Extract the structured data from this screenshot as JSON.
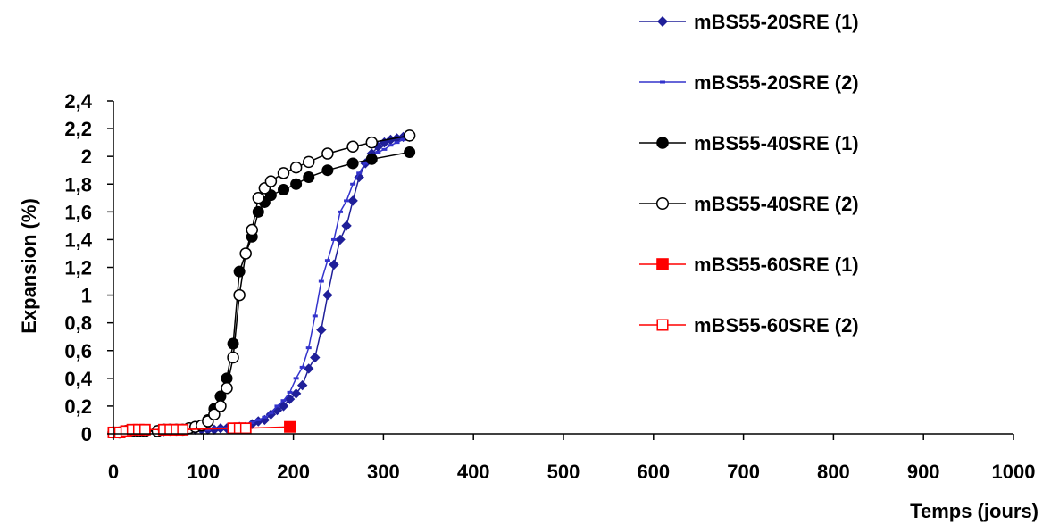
{
  "chart_data": {
    "type": "line",
    "xlabel": "Temps (jours)",
    "ylabel": "Expansion (%)",
    "xlim": [
      0,
      1000
    ],
    "ylim": [
      0,
      2.4
    ],
    "x_ticks": [
      "0",
      "100",
      "200",
      "300",
      "400",
      "500",
      "600",
      "700",
      "800",
      "900",
      "1000"
    ],
    "y_ticks": [
      "0",
      "0,2",
      "0,4",
      "0,6",
      "0,8",
      "1",
      "1,2",
      "1,4",
      "1,6",
      "1,8",
      "2",
      "2,2",
      "2,4"
    ],
    "grid": false,
    "legend_position": "right",
    "series": [
      {
        "name": "mBS55-20SRE (1)",
        "color": "#1f1f99",
        "marker": "diamond",
        "x": [
          0,
          7,
          14,
          21,
          28,
          35,
          49,
          56,
          63,
          70,
          77,
          84,
          91,
          98,
          105,
          112,
          119,
          126,
          133,
          140,
          147,
          154,
          161,
          168,
          175,
          182,
          189,
          196,
          203,
          210,
          217,
          224,
          231,
          238,
          245,
          252,
          259,
          266,
          273,
          280,
          287,
          294,
          301,
          308,
          315,
          322,
          329
        ],
        "y": [
          0.01,
          0.01,
          0.02,
          0.02,
          0.02,
          0.02,
          0.02,
          0.02,
          0.03,
          0.03,
          0.03,
          0.03,
          0.03,
          0.03,
          0.03,
          0.03,
          0.04,
          0.04,
          0.04,
          0.05,
          0.05,
          0.07,
          0.09,
          0.1,
          0.14,
          0.17,
          0.2,
          0.25,
          0.29,
          0.35,
          0.47,
          0.55,
          0.75,
          1.0,
          1.22,
          1.4,
          1.5,
          1.68,
          1.85,
          1.95,
          2.02,
          2.07,
          2.1,
          2.12,
          2.13,
          2.14,
          2.14
        ]
      },
      {
        "name": "mBS55-20SRE (2)",
        "color": "#3333cc",
        "marker": "dash",
        "x": [
          0,
          7,
          14,
          21,
          28,
          35,
          49,
          56,
          63,
          70,
          77,
          84,
          91,
          98,
          105,
          112,
          119,
          126,
          133,
          140,
          147,
          154,
          161,
          168,
          175,
          182,
          189,
          196,
          203,
          210,
          217,
          224,
          231,
          238,
          245,
          252,
          259,
          266,
          273,
          280,
          287,
          294,
          301,
          308,
          315,
          322,
          329
        ],
        "y": [
          0.01,
          0.01,
          0.02,
          0.02,
          0.02,
          0.02,
          0.02,
          0.02,
          0.03,
          0.03,
          0.03,
          0.03,
          0.03,
          0.03,
          0.03,
          0.04,
          0.04,
          0.04,
          0.05,
          0.05,
          0.06,
          0.08,
          0.1,
          0.12,
          0.15,
          0.2,
          0.24,
          0.3,
          0.4,
          0.48,
          0.62,
          0.85,
          1.1,
          1.25,
          1.4,
          1.6,
          1.68,
          1.8,
          1.88,
          1.95,
          2.0,
          2.03,
          2.05,
          2.08,
          2.1,
          2.12,
          2.13
        ]
      },
      {
        "name": "mBS55-40SRE (1)",
        "color": "#000000",
        "marker": "circle-filled",
        "x": [
          0,
          7,
          14,
          21,
          28,
          35,
          49,
          56,
          63,
          70,
          77,
          84,
          91,
          98,
          105,
          112,
          119,
          126,
          133,
          140,
          147,
          154,
          161,
          168,
          175,
          189,
          203,
          217,
          238,
          266,
          287,
          329
        ],
        "y": [
          0.01,
          0.01,
          0.02,
          0.02,
          0.02,
          0.02,
          0.02,
          0.03,
          0.03,
          0.03,
          0.03,
          0.04,
          0.05,
          0.06,
          0.1,
          0.18,
          0.27,
          0.4,
          0.65,
          1.17,
          1.3,
          1.42,
          1.6,
          1.67,
          1.72,
          1.76,
          1.8,
          1.85,
          1.9,
          1.95,
          1.98,
          2.03
        ]
      },
      {
        "name": "mBS55-40SRE (2)",
        "color": "#000000",
        "marker": "circle-open",
        "x": [
          0,
          7,
          14,
          21,
          28,
          35,
          49,
          56,
          63,
          70,
          77,
          84,
          91,
          98,
          105,
          112,
          119,
          126,
          133,
          140,
          147,
          154,
          161,
          168,
          175,
          189,
          203,
          217,
          238,
          266,
          287,
          329
        ],
        "y": [
          0.01,
          0.01,
          0.02,
          0.02,
          0.02,
          0.02,
          0.02,
          0.03,
          0.03,
          0.03,
          0.03,
          0.04,
          0.05,
          0.06,
          0.09,
          0.14,
          0.2,
          0.33,
          0.55,
          1.0,
          1.3,
          1.47,
          1.7,
          1.77,
          1.82,
          1.88,
          1.92,
          1.96,
          2.02,
          2.07,
          2.1,
          2.15
        ]
      },
      {
        "name": "mBS55-60SRE (1)",
        "color": "#ff0000",
        "marker": "square-filled",
        "x": [
          0,
          7,
          14,
          21,
          28,
          35,
          56,
          63,
          70,
          77,
          133,
          140,
          147,
          196
        ],
        "y": [
          0.01,
          0.01,
          0.02,
          0.03,
          0.03,
          0.03,
          0.03,
          0.03,
          0.03,
          0.03,
          0.04,
          0.04,
          0.04,
          0.05
        ]
      },
      {
        "name": "mBS55-60SRE (2)",
        "color": "#ff0000",
        "marker": "square-open",
        "x": [
          0,
          7,
          14,
          21,
          28,
          35,
          56,
          63,
          70,
          77,
          133,
          140,
          147
        ],
        "y": [
          0.01,
          0.01,
          0.02,
          0.03,
          0.03,
          0.03,
          0.03,
          0.03,
          0.03,
          0.03,
          0.04,
          0.04,
          0.04
        ]
      }
    ]
  }
}
